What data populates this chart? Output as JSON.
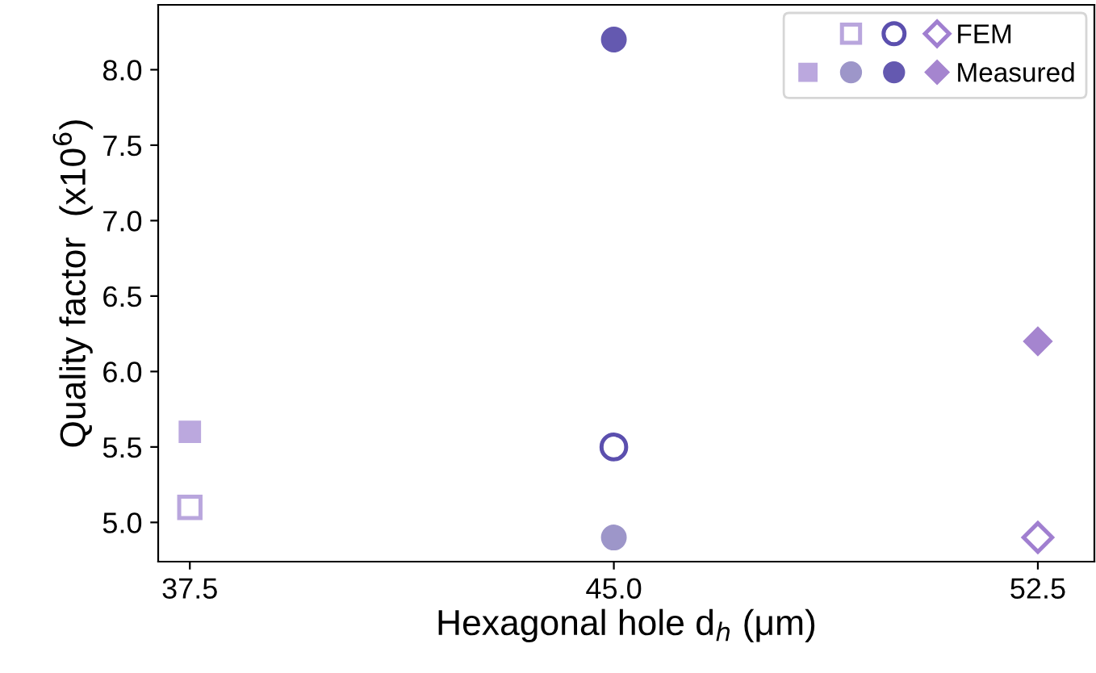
{
  "chart_data": {
    "type": "scatter",
    "xlabel": "Hexagonal hole d$_{h}$ (μm)",
    "ylabel": "Quality factor  (x10$^{6}$)",
    "xlim": [
      36.94,
      53.5
    ],
    "xticks": [
      {
        "value": 37.5,
        "label": "37.5"
      },
      {
        "value": 45,
        "label": "45.0"
      },
      {
        "value": 52.5,
        "label": "52.5"
      }
    ],
    "ylim": [
      4.74,
      8.43
    ],
    "yticks": [
      {
        "value": 5,
        "label": "5.0"
      },
      {
        "value": 5.5,
        "label": "5.5"
      },
      {
        "value": 6,
        "label": "6.0"
      },
      {
        "value": 6.5,
        "label": "6.5"
      },
      {
        "value": 7,
        "label": "7.0"
      },
      {
        "value": 7.5,
        "label": "7.5"
      },
      {
        "value": 8,
        "label": "8.0"
      }
    ],
    "grid": false,
    "legend": "top right",
    "series": [
      {
        "marker": "square",
        "color": "#b9a6dd",
        "x": [
          37.5
        ],
        "values": [
          5.1
        ]
      },
      {
        "marker": "circle",
        "color": "#5b4fae",
        "x": [
          45
        ],
        "values": [
          5.5
        ]
      },
      {
        "name": "FEM",
        "marker": "diamond",
        "color": "#a07fd0",
        "x": [
          52.5
        ],
        "values": [
          4.9
        ]
      },
      {
        "marker": "square",
        "color": "#bba8de",
        "x": [
          37.5
        ],
        "values": [
          5.6
        ]
      },
      {
        "marker": "circle",
        "color": "#9d96c9",
        "x": [
          45
        ],
        "values": [
          4.9
        ]
      },
      {
        "marker": "circle",
        "color": "#6459b0",
        "x": [
          45
        ],
        "values": [
          8.2
        ]
      },
      {
        "name": "Measured",
        "marker": "diamond",
        "color": "#a585cf",
        "x": [
          52.5
        ],
        "values": [
          6.2
        ]
      }
    ]
  }
}
